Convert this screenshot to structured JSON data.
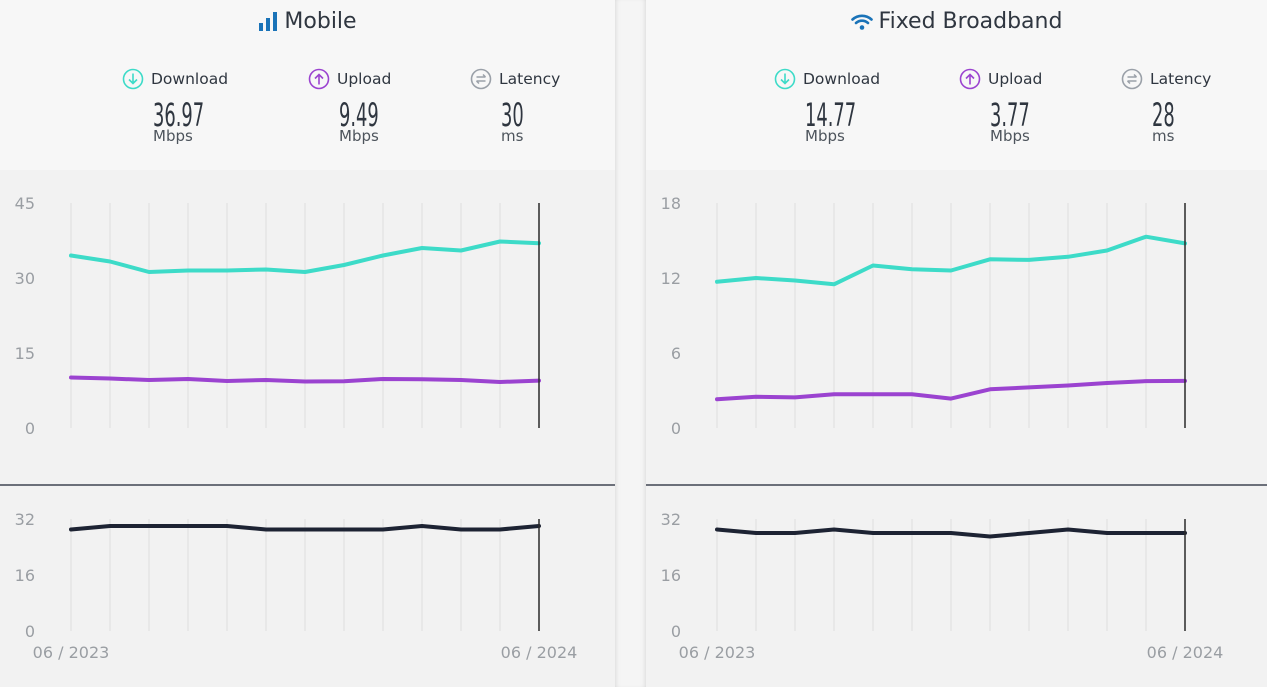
{
  "colors": {
    "download": "#3ddbc8",
    "upload": "#9b43d0",
    "latency": "#1d2333",
    "accent_icon": "#1a73b8",
    "latency_icon": "#9aa0a8"
  },
  "panels": [
    {
      "title": "Mobile",
      "icon": "signal-bars-icon",
      "metrics": [
        {
          "label": "Download",
          "value": "36.97",
          "unit": "Mbps",
          "icon": "download-arrow-icon"
        },
        {
          "label": "Upload",
          "value": "9.49",
          "unit": "Mbps",
          "icon": "upload-arrow-icon"
        },
        {
          "label": "Latency",
          "value": "30",
          "unit": "ms",
          "icon": "latency-icon"
        }
      ],
      "x_start_label": "06 / 2023",
      "x_end_label": "06 / 2024"
    },
    {
      "title": "Fixed Broadband",
      "icon": "wifi-icon",
      "metrics": [
        {
          "label": "Download",
          "value": "14.77",
          "unit": "Mbps",
          "icon": "download-arrow-icon"
        },
        {
          "label": "Upload",
          "value": "3.77",
          "unit": "Mbps",
          "icon": "upload-arrow-icon"
        },
        {
          "label": "Latency",
          "value": "28",
          "unit": "ms",
          "icon": "latency-icon"
        }
      ],
      "x_start_label": "06 / 2023",
      "x_end_label": "06 / 2024"
    }
  ],
  "chart_data": [
    {
      "type": "line",
      "panel": "Mobile",
      "x": [
        "06 / 2023",
        "07 / 2023",
        "08 / 2023",
        "09 / 2023",
        "10 / 2023",
        "11 / 2023",
        "12 / 2023",
        "01 / 2024",
        "02 / 2024",
        "03 / 2024",
        "04 / 2024",
        "05 / 2024",
        "06 / 2024"
      ],
      "speed": {
        "ylim": [
          0,
          45
        ],
        "yticks": [
          0,
          15,
          30,
          45
        ],
        "series": [
          {
            "key": "download",
            "values": [
              34.5,
              33.3,
              31.2,
              31.5,
              31.5,
              31.7,
              31.2,
              32.6,
              34.5,
              36.0,
              35.5,
              37.3,
              36.97
            ]
          },
          {
            "key": "upload",
            "values": [
              10.1,
              9.9,
              9.6,
              9.8,
              9.4,
              9.6,
              9.3,
              9.35,
              9.8,
              9.75,
              9.6,
              9.2,
              9.49
            ]
          }
        ]
      },
      "latency": {
        "ylim": [
          0,
          32
        ],
        "yticks": [
          0,
          16,
          32
        ],
        "series": [
          {
            "key": "latency",
            "values": [
              29,
              30,
              30,
              30,
              30,
              29,
              29,
              29,
              29,
              30,
              29,
              29,
              30
            ]
          }
        ]
      }
    },
    {
      "type": "line",
      "panel": "Fixed Broadband",
      "x": [
        "06 / 2023",
        "07 / 2023",
        "08 / 2023",
        "09 / 2023",
        "10 / 2023",
        "11 / 2023",
        "12 / 2023",
        "01 / 2024",
        "02 / 2024",
        "03 / 2024",
        "04 / 2024",
        "05 / 2024",
        "06 / 2024"
      ],
      "speed": {
        "ylim": [
          0,
          18
        ],
        "yticks": [
          0,
          6,
          12,
          18
        ],
        "series": [
          {
            "key": "download",
            "values": [
              11.7,
              12.0,
              11.8,
              11.5,
              13.0,
              12.7,
              12.6,
              13.5,
              13.45,
              13.7,
              14.2,
              15.3,
              14.77
            ]
          },
          {
            "key": "upload",
            "values": [
              2.3,
              2.5,
              2.45,
              2.7,
              2.7,
              2.7,
              2.35,
              3.1,
              3.25,
              3.4,
              3.6,
              3.75,
              3.77
            ]
          }
        ]
      },
      "latency": {
        "ylim": [
          0,
          32
        ],
        "yticks": [
          0,
          16,
          32
        ],
        "series": [
          {
            "key": "latency",
            "values": [
              29,
              28,
              28,
              29,
              28,
              28,
              28,
              27,
              28,
              29,
              28,
              28,
              28
            ]
          }
        ]
      }
    }
  ]
}
